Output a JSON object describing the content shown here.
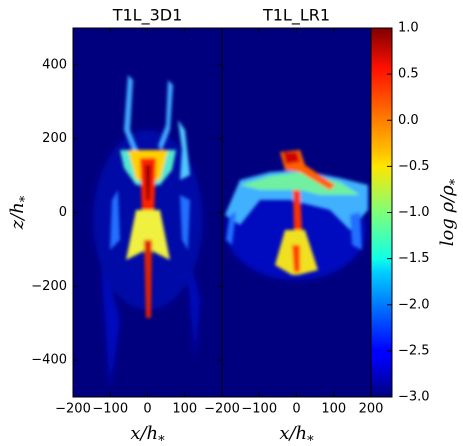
{
  "chart_data": [
    {
      "type": "heatmap",
      "title": "T1L_3D1",
      "xlim": [
        -200,
        200
      ],
      "ylim": [
        -500,
        500
      ],
      "xticks": [
        {
          "value": -200,
          "label": "−200"
        },
        {
          "value": -100,
          "label": "−100"
        },
        0,
        100
      ],
      "yticks": [
        {
          "value": -400,
          "label": "−400"
        },
        {
          "value": -200,
          "label": "−200"
        },
        0,
        200,
        400
      ],
      "x_label": {
        "text": "x/h",
        "subscript": "*"
      },
      "y_label": {
        "text": "z/h",
        "subscript": "*"
      }
    },
    {
      "type": "heatmap",
      "title": "T1L_LR1",
      "xlim": [
        -200,
        200
      ],
      "ylim": [
        -500,
        500
      ],
      "xticks": [
        {
          "value": -200,
          "label": "−200"
        },
        {
          "value": -100,
          "label": "−100"
        },
        0,
        100,
        200
      ],
      "x_label": {
        "text": "x/h",
        "subscript": "*"
      }
    }
  ],
  "colorbar": {
    "colormap": "jet",
    "lim": [
      -3,
      1
    ],
    "ticks": [
      {
        "value": -3,
        "label": "−3.0"
      },
      {
        "value": -2.5,
        "label": "−2.5"
      },
      {
        "value": -2,
        "label": "−2.0"
      },
      {
        "value": -1.5,
        "label": "−1.5"
      },
      {
        "value": -1,
        "label": "−1.0"
      },
      {
        "value": -0.5,
        "label": "−0.5"
      },
      {
        "value": 0,
        "label": "0.0"
      },
      0.5,
      {
        "value": 1,
        "label": "1.0"
      }
    ],
    "label": {
      "text": "log ρ/ρ",
      "subscript": "*"
    }
  }
}
